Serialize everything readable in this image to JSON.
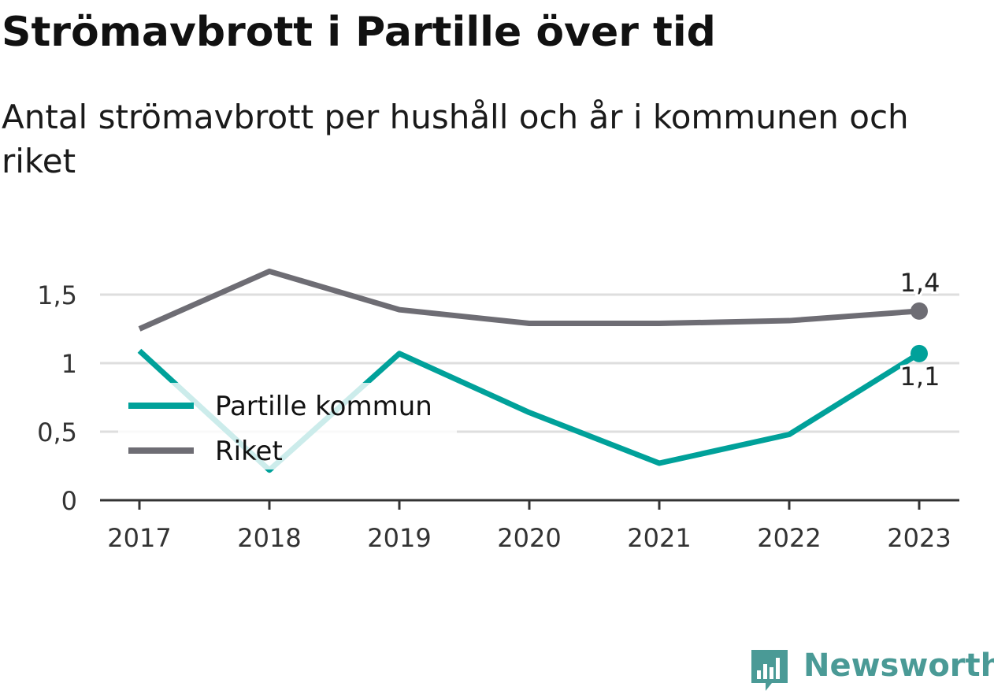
{
  "title": "Strömavbrott i Partille över tid",
  "subtitle": "Antal strömavbrott per hushåll och år i kommunen och riket",
  "brand": {
    "name": "Newsworthy",
    "icon": "newsworthy-logo-icon",
    "color": "#4a9a96"
  },
  "chart_data": {
    "type": "line",
    "x": [
      "2017",
      "2018",
      "2019",
      "2020",
      "2021",
      "2022",
      "2023"
    ],
    "ylim": [
      0,
      1.75
    ],
    "yticks": [
      0,
      0.5,
      1,
      1.5
    ],
    "ytick_labels": [
      "0",
      "0,5",
      "1",
      "1,5"
    ],
    "grid": true,
    "legend_position": "left-middle",
    "series": [
      {
        "name": "Partille kommun",
        "color": "#00a19a",
        "values": [
          1.09,
          0.22,
          1.07,
          0.64,
          0.27,
          0.48,
          1.07
        ],
        "end_label": "1,1"
      },
      {
        "name": "Riket",
        "color": "#6e6d74",
        "values": [
          1.25,
          1.67,
          1.39,
          1.29,
          1.29,
          1.31,
          1.38
        ],
        "end_label": "1,4"
      }
    ]
  }
}
